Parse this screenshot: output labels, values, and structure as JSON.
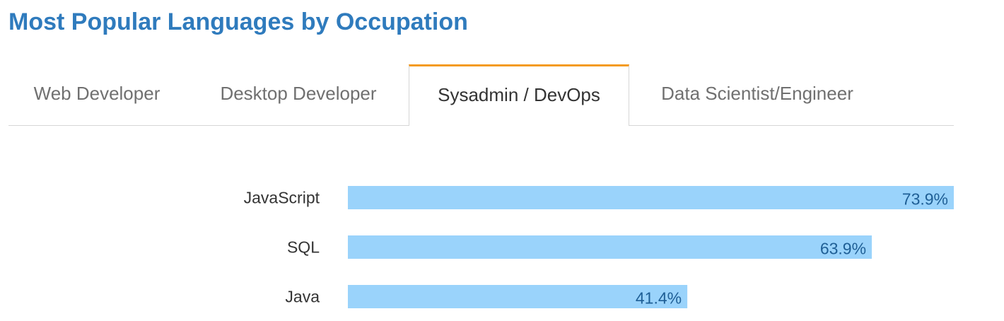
{
  "title": "Most Popular Languages by Occupation",
  "tabs": [
    {
      "label": "Web Developer",
      "active": false
    },
    {
      "label": "Desktop Developer",
      "active": false
    },
    {
      "label": "Sysadmin / DevOps",
      "active": true
    },
    {
      "label": "Data Scientist/Engineer",
      "active": false
    }
  ],
  "colors": {
    "title": "#2f7bbd",
    "active_tab_accent": "#f49b1f",
    "bar": "#9ad3fb",
    "value_label": "#1f5f96",
    "category_label": "#333333"
  },
  "chart_data": {
    "type": "bar",
    "orientation": "horizontal",
    "categories": [
      "JavaScript",
      "SQL",
      "Java"
    ],
    "values": [
      73.9,
      63.9,
      41.4
    ],
    "value_labels": [
      "73.9%",
      "63.9%",
      "41.4%"
    ],
    "title": "",
    "xlabel": "",
    "ylabel": "",
    "xlim": [
      0,
      73.9
    ],
    "grid": false,
    "legend": "none"
  }
}
